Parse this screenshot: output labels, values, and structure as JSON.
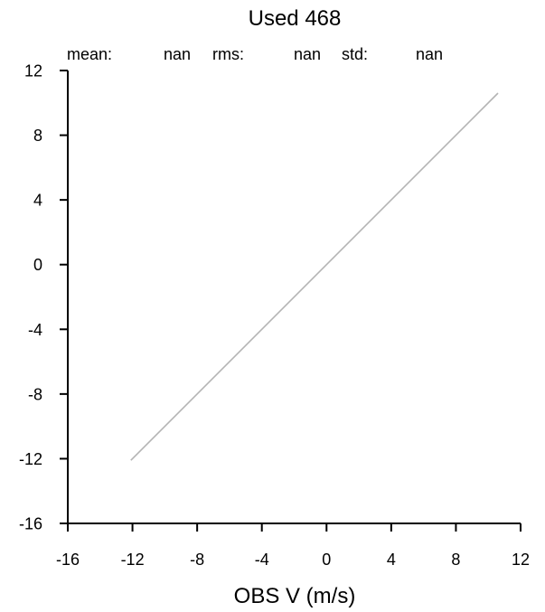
{
  "chart_data": {
    "type": "line",
    "title": "Used  468",
    "xlabel": "OBS V  (m/s)",
    "ylabel": "",
    "xlim": [
      -16,
      12
    ],
    "ylim": [
      -16,
      12
    ],
    "x_ticks": [
      "-16",
      "-12",
      "-8",
      "-4",
      "0",
      "4",
      "8",
      "12"
    ],
    "y_ticks": [
      "12",
      "8",
      "4",
      "0",
      "-4",
      "-8",
      "-12",
      "-16"
    ],
    "grid": false,
    "stats": [
      {
        "label": "mean:",
        "value": "nan"
      },
      {
        "label": "rms:",
        "value": "nan"
      },
      {
        "label": "std:",
        "value": "nan"
      }
    ],
    "series": [
      {
        "color": "#b4b4b4",
        "x": [
          -12.1,
          10.6
        ],
        "y": [
          -12.1,
          10.6
        ]
      }
    ]
  }
}
